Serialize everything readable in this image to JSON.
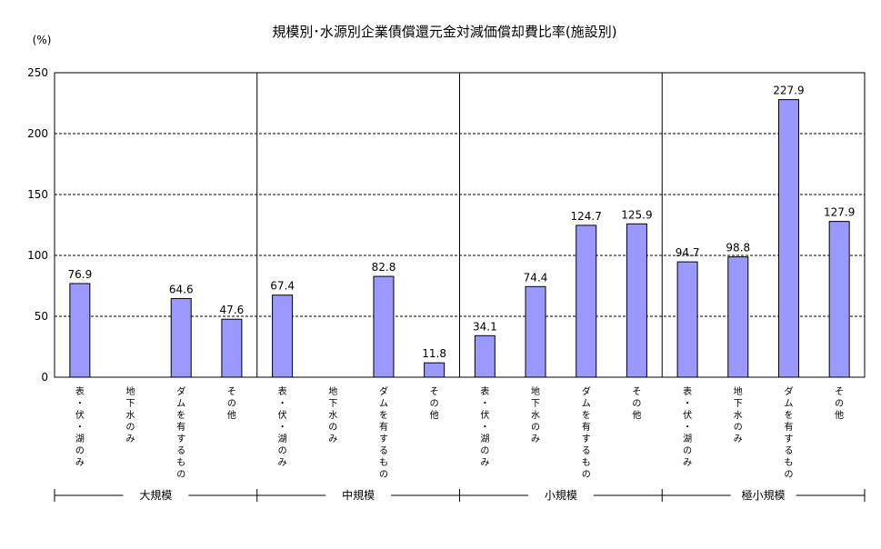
{
  "chart_data": {
    "type": "bar",
    "title": "規模別･水源別企業債償還元金対減価償却費比率(施設別)",
    "ylabel": "(%)",
    "ylim": [
      0,
      250
    ],
    "yticks": [
      0,
      50,
      100,
      150,
      200,
      250
    ],
    "grid": "dashed horizontal",
    "legend": "none",
    "bar_color": "#9999ff",
    "groups": [
      {
        "name": "大規模",
        "categories": [
          "表・伏・湖のみ",
          "地下水のみ",
          "ダムを有するもの",
          "その他"
        ],
        "values": [
          76.9,
          null,
          64.6,
          47.6
        ]
      },
      {
        "name": "中規模",
        "categories": [
          "表・伏・湖のみ",
          "地下水のみ",
          "ダムを有するもの",
          "その他"
        ],
        "values": [
          67.4,
          null,
          82.8,
          11.8
        ]
      },
      {
        "name": "小規模",
        "categories": [
          "表・伏・湖のみ",
          "地下水のみ",
          "ダムを有するもの",
          "その他"
        ],
        "values": [
          34.1,
          74.4,
          124.7,
          125.9
        ]
      },
      {
        "name": "極小規模",
        "categories": [
          "表・伏・湖のみ",
          "地下水のみ",
          "ダムを有するもの",
          "その他"
        ],
        "values": [
          94.7,
          98.8,
          227.9,
          127.9
        ]
      }
    ]
  }
}
